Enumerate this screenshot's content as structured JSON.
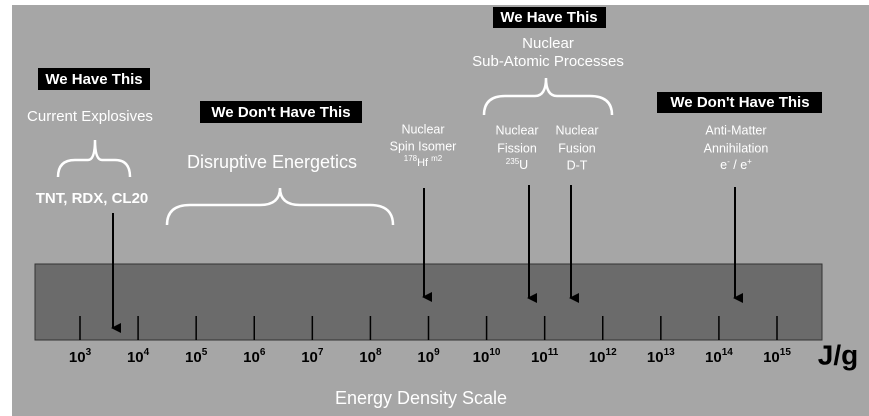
{
  "groups": [
    {
      "status": "We Have This",
      "title": "Current Explosives",
      "items": "TNT, RDX, CL20"
    },
    {
      "status": "We Don't Have This",
      "title": "Disruptive Energetics"
    },
    {
      "status": "We Have This",
      "title": [
        "Nuclear",
        "Sub-Atomic Processes"
      ]
    },
    {
      "status": "We Don't Have This"
    }
  ],
  "entries": {
    "isomer": {
      "lines": [
        "Nuclear",
        "Spin Isomer"
      ],
      "mass": "178",
      "element": "Hf",
      "state": "m2"
    },
    "fission": {
      "lines": [
        "Nuclear",
        "Fission"
      ],
      "mass": "235",
      "element": "U"
    },
    "fusion": {
      "lines": [
        "Nuclear",
        "Fusion",
        "D-T"
      ]
    },
    "antimatter": {
      "lines": [
        "Anti-Matter",
        "Annihilation"
      ],
      "a": "e",
      "a_sign": "-",
      "sep": " / e",
      "b_sign": "+"
    }
  },
  "scale": {
    "title": "Energy Density Scale",
    "unit": "J/g",
    "ticks": [
      {
        "base": "10",
        "exp": "3"
      },
      {
        "base": "10",
        "exp": "4"
      },
      {
        "base": "10",
        "exp": "5"
      },
      {
        "base": "10",
        "exp": "6"
      },
      {
        "base": "10",
        "exp": "7"
      },
      {
        "base": "10",
        "exp": "8"
      },
      {
        "base": "10",
        "exp": "9"
      },
      {
        "base": "10",
        "exp": "10"
      },
      {
        "base": "10",
        "exp": "11"
      },
      {
        "base": "10",
        "exp": "12"
      },
      {
        "base": "10",
        "exp": "13"
      },
      {
        "base": "10",
        "exp": "14"
      },
      {
        "base": "10",
        "exp": "15"
      }
    ]
  }
}
